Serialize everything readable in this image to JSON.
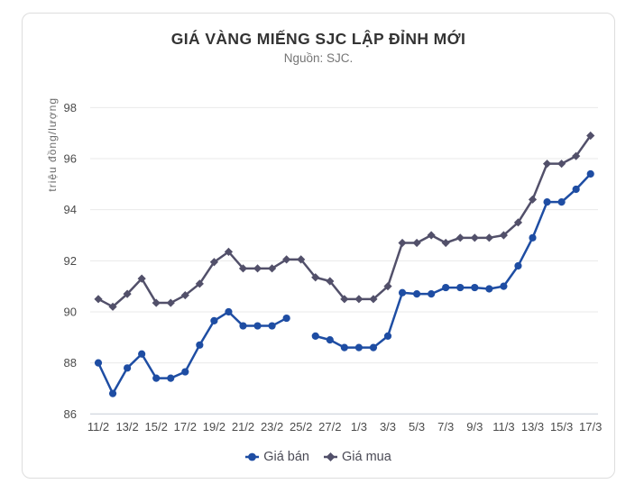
{
  "card": {
    "background": "#ffffff",
    "border_color": "#dddddd"
  },
  "header": {
    "title": "GIÁ VÀNG MIẾNG SJC LẬP ĐỈNH MỚI",
    "subtitle": "Nguồn: SJC."
  },
  "chart_data": {
    "type": "line",
    "title": "GIÁ VÀNG MIẾNG SJC LẬP ĐỈNH MỚI",
    "subtitle": "Nguồn: SJC.",
    "ylabel": "triệu đồng/lượng",
    "xlabel": "",
    "ylim": [
      86,
      98
    ],
    "y_ticks": [
      86,
      88,
      90,
      92,
      94,
      96,
      98
    ],
    "grid": "horizontal",
    "legend_position": "bottom",
    "x": [
      "11/2",
      "12/2",
      "13/2",
      "14/2",
      "15/2",
      "16/2",
      "17/2",
      "18/2",
      "19/2",
      "20/2",
      "21/2",
      "22/2",
      "23/2",
      "24/2",
      "25/2",
      "26/2",
      "27/2",
      "28/2",
      "1/3",
      "2/3",
      "3/3",
      "4/3",
      "5/3",
      "6/3",
      "7/3",
      "8/3",
      "9/3",
      "10/3",
      "11/3",
      "12/3",
      "13/3",
      "14/3",
      "15/3",
      "16/3",
      "17/3"
    ],
    "x_tick_labels": [
      "11/2",
      "13/2",
      "15/2",
      "17/2",
      "19/2",
      "21/2",
      "23/2",
      "25/2",
      "27/2",
      "1/3",
      "3/3",
      "5/3",
      "7/3",
      "9/3",
      "11/3",
      "13/3",
      "15/3",
      "17/3"
    ],
    "series": [
      {
        "name": "Giá bán",
        "marker": "circle",
        "color": "#1e4da3",
        "values": [
          88.0,
          86.8,
          87.8,
          88.35,
          87.4,
          87.4,
          87.65,
          88.7,
          89.65,
          90.0,
          89.45,
          89.45,
          89.45,
          89.75,
          null,
          89.05,
          88.9,
          88.6,
          88.6,
          88.6,
          89.05,
          90.75,
          90.7,
          90.7,
          90.95,
          90.95,
          90.95,
          90.9,
          91.0,
          91.8,
          92.9,
          94.3,
          94.3,
          94.8,
          95.4
        ]
      },
      {
        "name": "Giá mua",
        "marker": "diamond",
        "color": "#52506a",
        "values": [
          90.5,
          90.2,
          90.7,
          91.3,
          90.35,
          90.35,
          90.65,
          91.1,
          91.95,
          92.35,
          91.7,
          91.7,
          91.7,
          92.05,
          92.05,
          91.35,
          91.2,
          90.5,
          90.5,
          90.5,
          91.0,
          92.7,
          92.7,
          93.0,
          92.7,
          92.9,
          92.9,
          92.9,
          93.0,
          93.5,
          94.4,
          95.8,
          95.8,
          96.1,
          96.9
        ]
      }
    ]
  },
  "style": {
    "grid_color": "#e9e9e9",
    "axis_line_color": "#c5cbd5",
    "tick_label_color": "#4b4b4b",
    "axis_title_color": "#6b6b6b"
  }
}
